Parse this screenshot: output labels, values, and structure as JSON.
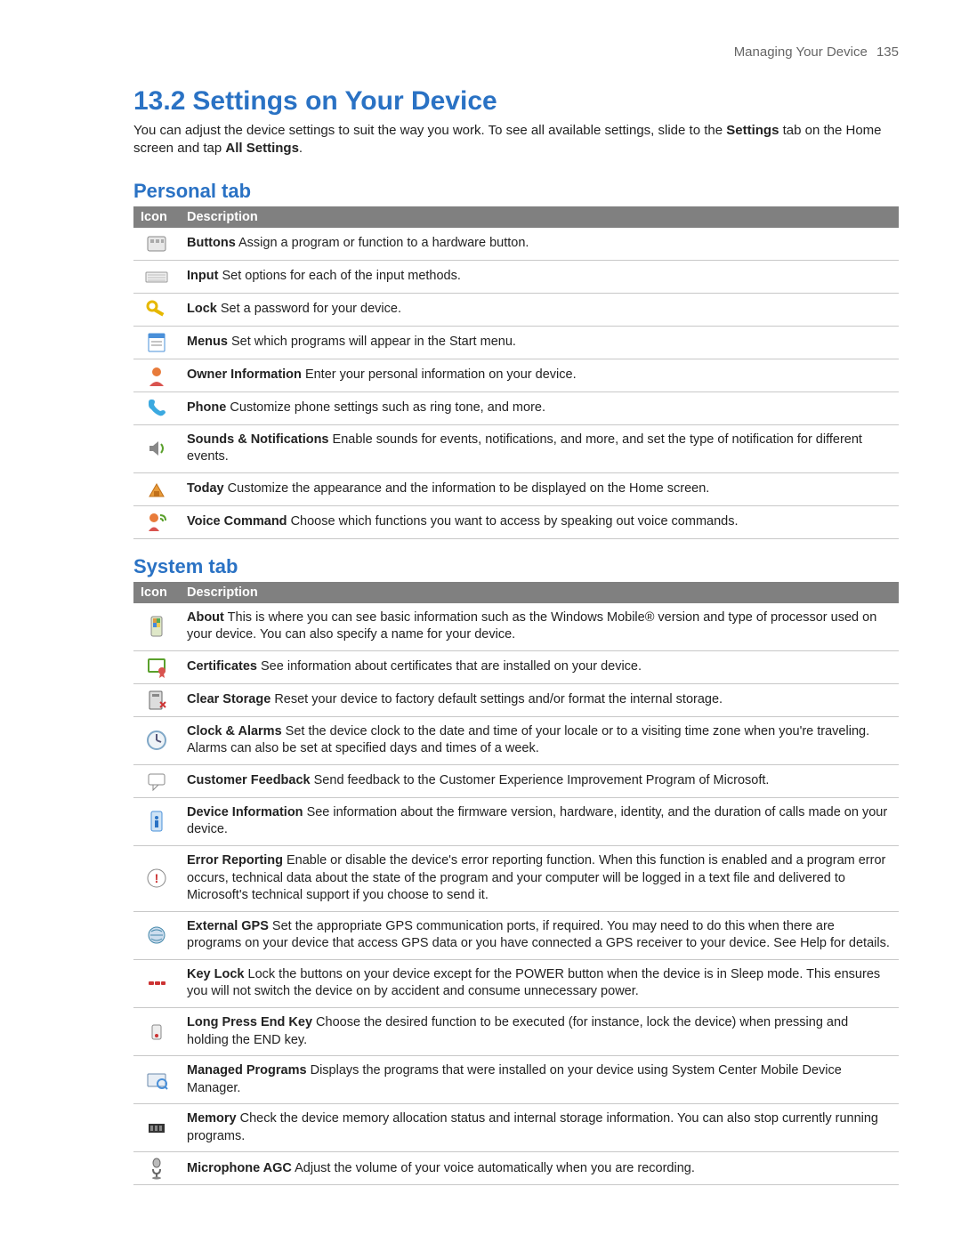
{
  "header": {
    "running_title": "Managing Your Device",
    "page_number": "135"
  },
  "section": {
    "number": "13.2",
    "title": "Settings on Your Device"
  },
  "intro": {
    "pre": "You can adjust the device settings to suit the way you work. To see all available settings, slide to the ",
    "bold1": "Settings",
    "mid": " tab on the Home screen and tap ",
    "bold2": "All Settings",
    "post": "."
  },
  "columns": {
    "icon": "Icon",
    "description": "Description"
  },
  "colors": {
    "heading": "#2a72c4",
    "table_header_bg": "#808080",
    "text": "#222222",
    "rule": "#c8c8c8"
  },
  "personal": {
    "title": "Personal tab",
    "rows": [
      {
        "icon": "buttons-icon",
        "name": "Buttons",
        "desc": "Assign a program or function to a hardware button."
      },
      {
        "icon": "input-icon",
        "name": "Input",
        "desc": "Set options for each of the input methods."
      },
      {
        "icon": "lock-icon",
        "name": "Lock",
        "desc": "Set a password for your device."
      },
      {
        "icon": "menus-icon",
        "name": "Menus",
        "desc": "Set which programs will appear in the Start menu."
      },
      {
        "icon": "owner-icon",
        "name": "Owner Information",
        "desc": "Enter your personal information on your device."
      },
      {
        "icon": "phone-icon",
        "name": "Phone",
        "desc": "Customize phone settings such as ring tone, and more."
      },
      {
        "icon": "sounds-icon",
        "name": "Sounds & Notifications",
        "desc": "Enable sounds for events, notifications, and more, and set the type of notification for different events."
      },
      {
        "icon": "today-icon",
        "name": "Today",
        "desc": "Customize the appearance and the information to be displayed on the Home screen."
      },
      {
        "icon": "voice-icon",
        "name": "Voice Command",
        "desc": "Choose which functions you want to access by speaking out voice commands."
      }
    ]
  },
  "system": {
    "title": "System tab",
    "rows": [
      {
        "icon": "about-icon",
        "name": "About",
        "desc": "This is where you can see basic information such as the Windows Mobile® version and type of processor used on your device. You can also specify a name for your device."
      },
      {
        "icon": "certificates-icon",
        "name": "Certificates",
        "desc": "See information about certificates that are installed on your device."
      },
      {
        "icon": "clear-storage-icon",
        "name": "Clear Storage",
        "desc": "Reset your device to factory default settings and/or format the internal storage."
      },
      {
        "icon": "clock-icon",
        "name": "Clock & Alarms",
        "desc": "Set the device clock to the date and time of your locale or to a visiting time zone when you're traveling. Alarms can also be set at specified days and times of a week."
      },
      {
        "icon": "feedback-icon",
        "name": "Customer Feedback",
        "desc": "Send feedback to the Customer Experience Improvement Program of Microsoft."
      },
      {
        "icon": "device-info-icon",
        "name": "Device Information",
        "desc": "See information about the firmware version, hardware, identity, and the duration of calls made on your device."
      },
      {
        "icon": "error-icon",
        "name": "Error Reporting",
        "desc": "Enable or disable the device's error reporting function. When this function is enabled and a program error occurs, technical data about the state of the program and your computer will be logged in a text file and delivered to Microsoft's technical support if you choose to send it."
      },
      {
        "icon": "gps-icon",
        "name": "External GPS",
        "desc": "Set the appropriate GPS communication ports, if required. You may need to do this when there are programs on your device that access GPS data or you have connected a GPS receiver to your device. See Help for details."
      },
      {
        "icon": "keylock-icon",
        "name": "Key Lock",
        "desc": "Lock the buttons on your device except for the POWER button when the device is in Sleep mode. This ensures you will not switch the device on by accident and consume unnecessary power."
      },
      {
        "icon": "longpress-icon",
        "name": "Long Press End Key",
        "desc": "Choose the desired function to be executed (for instance, lock the device) when pressing and holding the END key."
      },
      {
        "icon": "managed-icon",
        "name": "Managed Programs",
        "desc": "Displays the programs that were installed on your device using System Center Mobile Device Manager."
      },
      {
        "icon": "memory-icon",
        "name": "Memory",
        "desc": "Check the device memory allocation status and internal storage information. You can also stop currently running programs."
      },
      {
        "icon": "mic-icon",
        "name": "Microphone AGC",
        "desc": "Adjust the volume of your voice automatically when you are recording."
      }
    ]
  }
}
